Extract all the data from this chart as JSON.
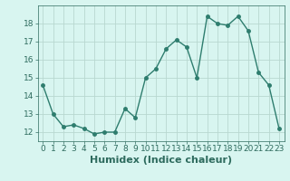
{
  "x": [
    0,
    1,
    2,
    3,
    4,
    5,
    6,
    7,
    8,
    9,
    10,
    11,
    12,
    13,
    14,
    15,
    16,
    17,
    18,
    19,
    20,
    21,
    22,
    23
  ],
  "y": [
    14.6,
    13.0,
    12.3,
    12.4,
    12.2,
    11.9,
    12.0,
    12.0,
    13.3,
    12.8,
    15.0,
    15.5,
    16.6,
    17.1,
    16.7,
    15.0,
    18.4,
    18.0,
    17.9,
    18.4,
    17.6,
    15.3,
    14.6,
    12.2
  ],
  "line_color": "#2e7d6e",
  "marker": "o",
  "markersize": 2.5,
  "linewidth": 1.0,
  "bg_color": "#d8f5f0",
  "grid_color": "#b8d8d0",
  "xlabel": "Humidex (Indice chaleur)",
  "xlim": [
    -0.5,
    23.5
  ],
  "ylim": [
    11.5,
    19.0
  ],
  "yticks": [
    12,
    13,
    14,
    15,
    16,
    17,
    18
  ],
  "xticks": [
    0,
    1,
    2,
    3,
    4,
    5,
    6,
    7,
    8,
    9,
    10,
    11,
    12,
    13,
    14,
    15,
    16,
    17,
    18,
    19,
    20,
    21,
    22,
    23
  ],
  "xlabel_fontsize": 8,
  "tick_fontsize": 6.5,
  "font_color": "#2e6b5e"
}
